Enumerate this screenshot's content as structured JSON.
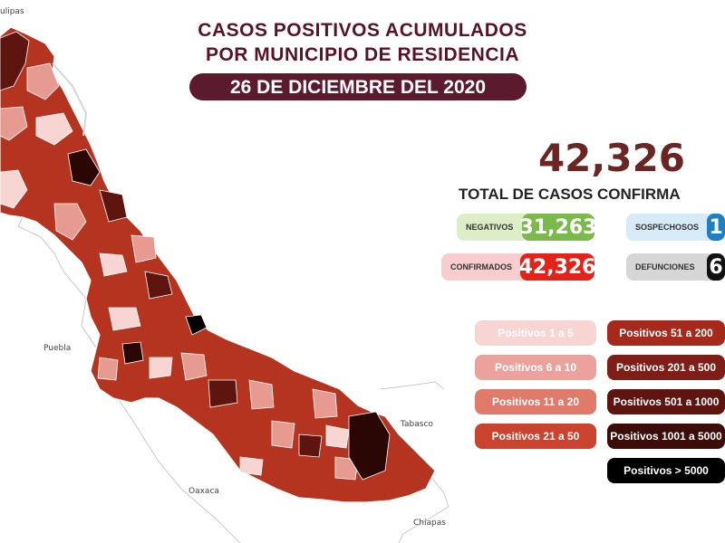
{
  "title": {
    "line1": "CASOS POSITIVOS ACUMULADOS",
    "line2": "POR MUNICIPIO DE RESIDENCIA",
    "date": "26 DE DICIEMBRE DEL 2020"
  },
  "total": {
    "value": "42,326",
    "label": "TOTAL DE CASOS CONFIRMA"
  },
  "stats": {
    "negativos": {
      "label": "NEGATIVOS",
      "value": "31,263",
      "color": "#7bb94d",
      "bg": "#dcedc8"
    },
    "sospechosos": {
      "label": "SOSPECHOSOS",
      "value": "1",
      "color": "#1e7fc2",
      "bg": "#d6eaf8"
    },
    "confirmados": {
      "label": "CONFIRMADOS",
      "value": "42,326",
      "color": "#e2231a",
      "bg": "#f8cdcd"
    },
    "defunciones": {
      "label": "DEFUNCIONES",
      "value": "6",
      "color": "#111111",
      "bg": "#d6d6d6"
    }
  },
  "legend": {
    "left": [
      {
        "label": "Positivos 1 a 5",
        "color": "#f6d5d3"
      },
      {
        "label": "Positivos 6 a 10",
        "color": "#eba29c"
      },
      {
        "label": "Positivos 11 a 20",
        "color": "#e07a6b"
      },
      {
        "label": "Positivos 21 a 50",
        "color": "#c9432e"
      }
    ],
    "right": [
      {
        "label": "Positivos 51 a 200",
        "color": "#a52a1c"
      },
      {
        "label": "Positivos 201 a 500",
        "color": "#7e1e16"
      },
      {
        "label": "Positivos 501 a 1000",
        "color": "#5e150f"
      },
      {
        "label": "Positivos 1001 a 5000",
        "color": "#3c0c08"
      },
      {
        "label": "Positivos > 5000",
        "color": "#000000"
      }
    ]
  },
  "map_labels": {
    "tamaulipas": "ulipas",
    "puebla": "Puebla",
    "oaxaca": "Oaxaca",
    "tabasco": "Tabasco",
    "chiapas": "Chiapas"
  },
  "map_colors": {
    "base": "#b5341f",
    "dark": "#5e150f",
    "darkest": "#2a0704",
    "light": "#e79a90",
    "lightest": "#f6d5d3"
  }
}
